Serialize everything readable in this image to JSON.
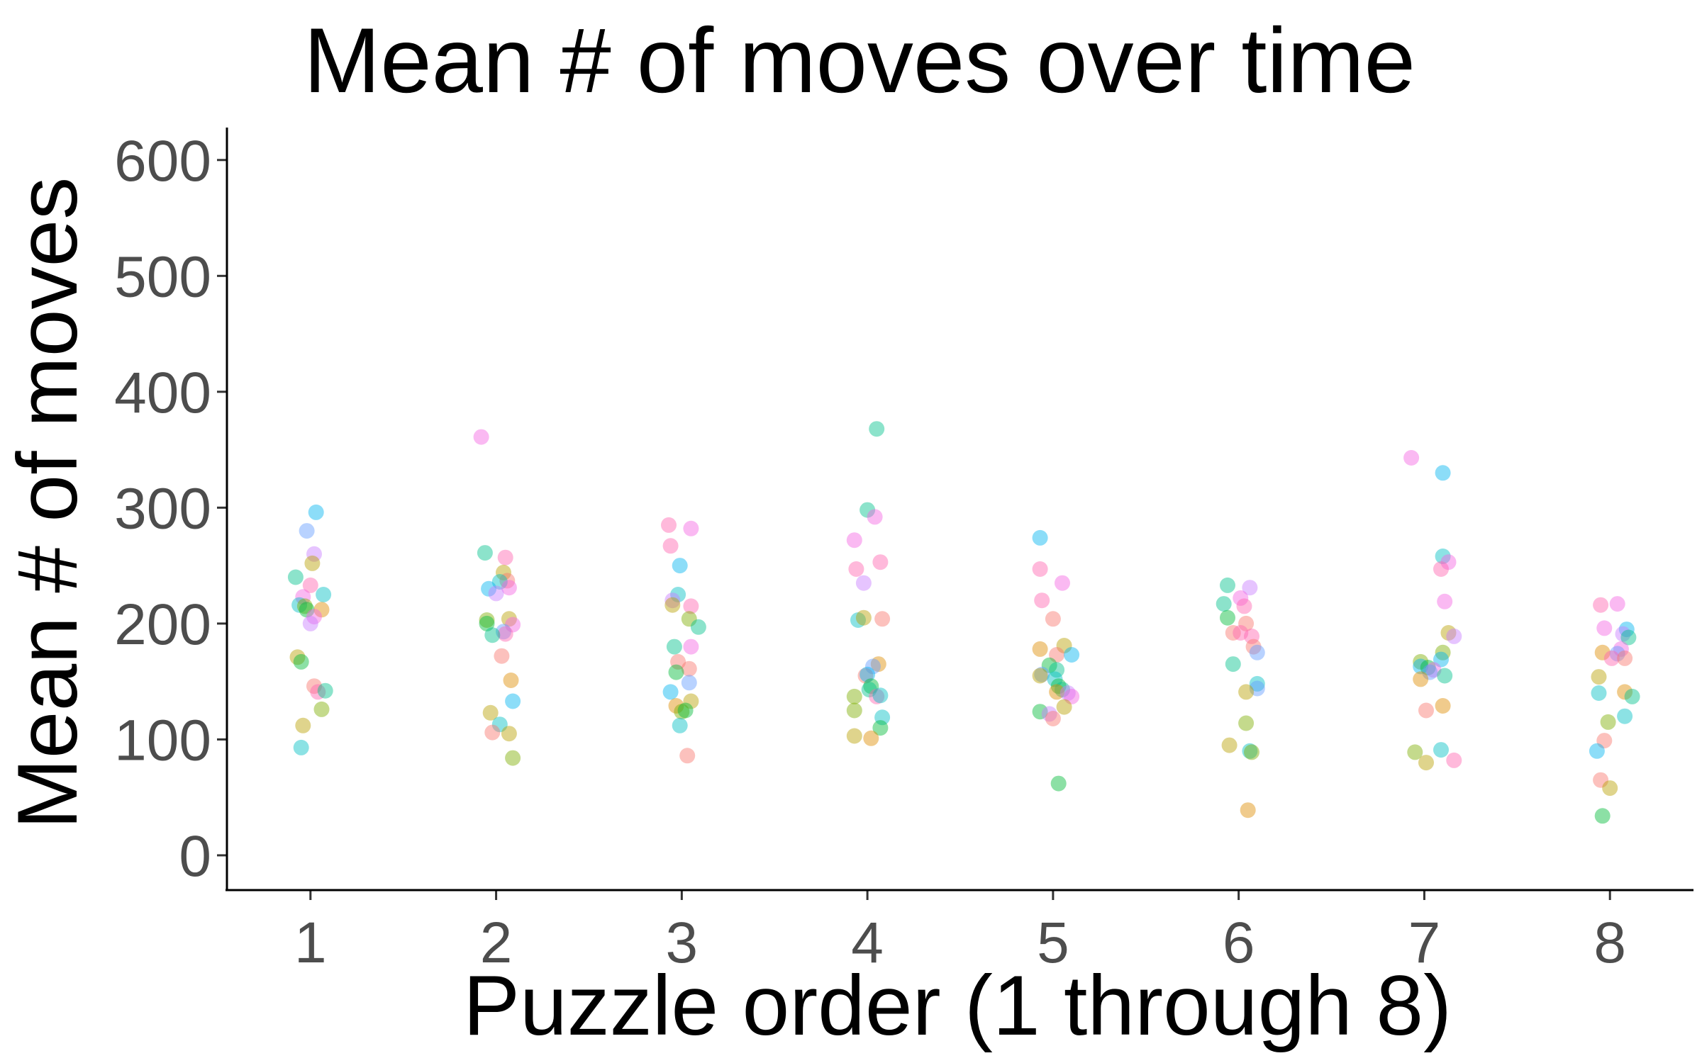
{
  "chart_data": {
    "type": "scatter",
    "title": "Mean # of moves over time",
    "xlabel": "Puzzle order (1 through 8)",
    "ylabel": "Mean # of moves",
    "x_ticks": [
      "1",
      "2",
      "3",
      "4",
      "5",
      "6",
      "7",
      "8"
    ],
    "y_ticks": [
      "0",
      "100",
      "200",
      "300",
      "400",
      "500",
      "600"
    ],
    "xlim": [
      0.55,
      8.45
    ],
    "ylim": [
      -30,
      628
    ],
    "grid": false,
    "legend": "none",
    "colors": [
      "#F8766D",
      "#DE8C00",
      "#B79F00",
      "#7CAE00",
      "#00BA38",
      "#00C08B",
      "#00BFC4",
      "#00B4F0",
      "#619CFF",
      "#C77CFF",
      "#F564E3",
      "#FF64B0"
    ],
    "points": [
      {
        "x": 0.92,
        "y": 240,
        "c": 5
      },
      {
        "x": 1.03,
        "y": 296,
        "c": 7
      },
      {
        "x": 0.98,
        "y": 280,
        "c": 8
      },
      {
        "x": 1.02,
        "y": 260,
        "c": 9
      },
      {
        "x": 1.01,
        "y": 252,
        "c": 2
      },
      {
        "x": 1.0,
        "y": 233,
        "c": 11
      },
      {
        "x": 1.07,
        "y": 225,
        "c": 6
      },
      {
        "x": 0.96,
        "y": 223,
        "c": 10
      },
      {
        "x": 0.94,
        "y": 216,
        "c": 6
      },
      {
        "x": 0.97,
        "y": 215,
        "c": 3
      },
      {
        "x": 0.98,
        "y": 212,
        "c": 4
      },
      {
        "x": 1.06,
        "y": 212,
        "c": 1
      },
      {
        "x": 1.02,
        "y": 206,
        "c": 10
      },
      {
        "x": 1.0,
        "y": 200,
        "c": 9
      },
      {
        "x": 0.93,
        "y": 171,
        "c": 2
      },
      {
        "x": 0.95,
        "y": 167,
        "c": 4
      },
      {
        "x": 1.02,
        "y": 146,
        "c": 0
      },
      {
        "x": 1.04,
        "y": 141,
        "c": 11
      },
      {
        "x": 1.08,
        "y": 142,
        "c": 5
      },
      {
        "x": 1.06,
        "y": 126,
        "c": 3
      },
      {
        "x": 0.96,
        "y": 112,
        "c": 2
      },
      {
        "x": 0.95,
        "y": 93,
        "c": 6
      },
      {
        "x": 1.92,
        "y": 361,
        "c": 10
      },
      {
        "x": 1.94,
        "y": 261,
        "c": 5
      },
      {
        "x": 2.05,
        "y": 257,
        "c": 11
      },
      {
        "x": 2.04,
        "y": 244,
        "c": 2
      },
      {
        "x": 2.06,
        "y": 237,
        "c": 0
      },
      {
        "x": 2.02,
        "y": 236,
        "c": 6
      },
      {
        "x": 2.07,
        "y": 231,
        "c": 10
      },
      {
        "x": 1.96,
        "y": 230,
        "c": 7
      },
      {
        "x": 2.0,
        "y": 226,
        "c": 9
      },
      {
        "x": 1.95,
        "y": 203,
        "c": 3
      },
      {
        "x": 2.07,
        "y": 204,
        "c": 2
      },
      {
        "x": 1.95,
        "y": 200,
        "c": 4
      },
      {
        "x": 2.09,
        "y": 199,
        "c": 10
      },
      {
        "x": 2.04,
        "y": 193,
        "c": 8
      },
      {
        "x": 2.05,
        "y": 191,
        "c": 11
      },
      {
        "x": 1.98,
        "y": 190,
        "c": 5
      },
      {
        "x": 2.03,
        "y": 172,
        "c": 0
      },
      {
        "x": 2.08,
        "y": 151,
        "c": 1
      },
      {
        "x": 2.09,
        "y": 133,
        "c": 7
      },
      {
        "x": 1.97,
        "y": 123,
        "c": 2
      },
      {
        "x": 2.02,
        "y": 113,
        "c": 6
      },
      {
        "x": 1.98,
        "y": 106,
        "c": 0
      },
      {
        "x": 2.07,
        "y": 105,
        "c": 2
      },
      {
        "x": 2.09,
        "y": 84,
        "c": 3
      },
      {
        "x": 2.93,
        "y": 285,
        "c": 11
      },
      {
        "x": 3.05,
        "y": 282,
        "c": 10
      },
      {
        "x": 2.94,
        "y": 267,
        "c": 11
      },
      {
        "x": 2.99,
        "y": 250,
        "c": 7
      },
      {
        "x": 2.98,
        "y": 225,
        "c": 6
      },
      {
        "x": 2.95,
        "y": 220,
        "c": 9
      },
      {
        "x": 2.95,
        "y": 216,
        "c": 2
      },
      {
        "x": 3.05,
        "y": 215,
        "c": 11
      },
      {
        "x": 3.04,
        "y": 204,
        "c": 3
      },
      {
        "x": 3.09,
        "y": 197,
        "c": 5
      },
      {
        "x": 2.96,
        "y": 180,
        "c": 5
      },
      {
        "x": 3.05,
        "y": 180,
        "c": 10
      },
      {
        "x": 2.98,
        "y": 167,
        "c": 0
      },
      {
        "x": 3.04,
        "y": 161,
        "c": 0
      },
      {
        "x": 2.97,
        "y": 158,
        "c": 4
      },
      {
        "x": 3.04,
        "y": 149,
        "c": 8
      },
      {
        "x": 2.94,
        "y": 141,
        "c": 7
      },
      {
        "x": 3.05,
        "y": 133,
        "c": 2
      },
      {
        "x": 2.97,
        "y": 129,
        "c": 1
      },
      {
        "x": 3.0,
        "y": 124,
        "c": 3
      },
      {
        "x": 3.02,
        "y": 125,
        "c": 4
      },
      {
        "x": 2.99,
        "y": 112,
        "c": 6
      },
      {
        "x": 3.03,
        "y": 86,
        "c": 0
      },
      {
        "x": 4.05,
        "y": 368,
        "c": 5
      },
      {
        "x": 4.0,
        "y": 298,
        "c": 5
      },
      {
        "x": 4.04,
        "y": 292,
        "c": 10
      },
      {
        "x": 3.93,
        "y": 272,
        "c": 10
      },
      {
        "x": 4.07,
        "y": 253,
        "c": 11
      },
      {
        "x": 3.94,
        "y": 247,
        "c": 11
      },
      {
        "x": 3.98,
        "y": 235,
        "c": 9
      },
      {
        "x": 3.95,
        "y": 203,
        "c": 6
      },
      {
        "x": 3.98,
        "y": 205,
        "c": 2
      },
      {
        "x": 4.08,
        "y": 204,
        "c": 0
      },
      {
        "x": 4.06,
        "y": 165,
        "c": 1
      },
      {
        "x": 4.03,
        "y": 163,
        "c": 8
      },
      {
        "x": 3.99,
        "y": 155,
        "c": 0
      },
      {
        "x": 4.0,
        "y": 156,
        "c": 7
      },
      {
        "x": 4.02,
        "y": 146,
        "c": 4
      },
      {
        "x": 4.01,
        "y": 143,
        "c": 5
      },
      {
        "x": 3.93,
        "y": 137,
        "c": 3
      },
      {
        "x": 4.05,
        "y": 137,
        "c": 11
      },
      {
        "x": 4.07,
        "y": 138,
        "c": 6
      },
      {
        "x": 3.93,
        "y": 125,
        "c": 3
      },
      {
        "x": 4.08,
        "y": 119,
        "c": 6
      },
      {
        "x": 4.07,
        "y": 110,
        "c": 4
      },
      {
        "x": 3.93,
        "y": 103,
        "c": 2
      },
      {
        "x": 4.02,
        "y": 101,
        "c": 1
      },
      {
        "x": 4.93,
        "y": 274,
        "c": 7
      },
      {
        "x": 4.93,
        "y": 247,
        "c": 11
      },
      {
        "x": 5.05,
        "y": 235,
        "c": 10
      },
      {
        "x": 4.94,
        "y": 220,
        "c": 11
      },
      {
        "x": 5.0,
        "y": 204,
        "c": 0
      },
      {
        "x": 5.06,
        "y": 181,
        "c": 2
      },
      {
        "x": 4.93,
        "y": 178,
        "c": 1
      },
      {
        "x": 5.02,
        "y": 173,
        "c": 0
      },
      {
        "x": 5.1,
        "y": 173,
        "c": 7
      },
      {
        "x": 4.98,
        "y": 164,
        "c": 4
      },
      {
        "x": 5.02,
        "y": 160,
        "c": 5
      },
      {
        "x": 4.94,
        "y": 156,
        "c": 8
      },
      {
        "x": 4.93,
        "y": 155,
        "c": 2
      },
      {
        "x": 5.01,
        "y": 152,
        "c": 6
      },
      {
        "x": 5.03,
        "y": 146,
        "c": 4
      },
      {
        "x": 5.05,
        "y": 143,
        "c": 5
      },
      {
        "x": 5.02,
        "y": 141,
        "c": 1
      },
      {
        "x": 5.08,
        "y": 140,
        "c": 9
      },
      {
        "x": 5.1,
        "y": 137,
        "c": 10
      },
      {
        "x": 5.06,
        "y": 128,
        "c": 2
      },
      {
        "x": 4.93,
        "y": 124,
        "c": 4
      },
      {
        "x": 4.98,
        "y": 122,
        "c": 9
      },
      {
        "x": 5.0,
        "y": 118,
        "c": 0
      },
      {
        "x": 5.03,
        "y": 62,
        "c": 4
      },
      {
        "x": 5.94,
        "y": 233,
        "c": 5
      },
      {
        "x": 6.06,
        "y": 231,
        "c": 9
      },
      {
        "x": 6.01,
        "y": 222,
        "c": 10
      },
      {
        "x": 5.92,
        "y": 217,
        "c": 5
      },
      {
        "x": 6.03,
        "y": 215,
        "c": 11
      },
      {
        "x": 5.94,
        "y": 205,
        "c": 4
      },
      {
        "x": 6.04,
        "y": 200,
        "c": 0
      },
      {
        "x": 5.97,
        "y": 192,
        "c": 0
      },
      {
        "x": 6.01,
        "y": 192,
        "c": 11
      },
      {
        "x": 6.07,
        "y": 189,
        "c": 11
      },
      {
        "x": 6.08,
        "y": 180,
        "c": 0
      },
      {
        "x": 6.1,
        "y": 175,
        "c": 8
      },
      {
        "x": 5.97,
        "y": 165,
        "c": 5
      },
      {
        "x": 6.1,
        "y": 148,
        "c": 6
      },
      {
        "x": 6.1,
        "y": 144,
        "c": 8
      },
      {
        "x": 6.04,
        "y": 141,
        "c": 2
      },
      {
        "x": 6.04,
        "y": 114,
        "c": 3
      },
      {
        "x": 5.95,
        "y": 95,
        "c": 2
      },
      {
        "x": 6.06,
        "y": 90,
        "c": 6
      },
      {
        "x": 6.07,
        "y": 89,
        "c": 3
      },
      {
        "x": 6.05,
        "y": 39,
        "c": 1
      },
      {
        "x": 6.93,
        "y": 343,
        "c": 10
      },
      {
        "x": 7.1,
        "y": 330,
        "c": 7
      },
      {
        "x": 7.1,
        "y": 258,
        "c": 6
      },
      {
        "x": 7.13,
        "y": 253,
        "c": 10
      },
      {
        "x": 7.09,
        "y": 247,
        "c": 11
      },
      {
        "x": 7.11,
        "y": 219,
        "c": 10
      },
      {
        "x": 7.13,
        "y": 192,
        "c": 2
      },
      {
        "x": 7.16,
        "y": 189,
        "c": 9
      },
      {
        "x": 7.1,
        "y": 175,
        "c": 3
      },
      {
        "x": 6.98,
        "y": 167,
        "c": 3
      },
      {
        "x": 7.09,
        "y": 169,
        "c": 7
      },
      {
        "x": 6.98,
        "y": 163,
        "c": 7
      },
      {
        "x": 7.02,
        "y": 162,
        "c": 4
      },
      {
        "x": 7.05,
        "y": 160,
        "c": 10
      },
      {
        "x": 7.03,
        "y": 158,
        "c": 8
      },
      {
        "x": 7.11,
        "y": 155,
        "c": 5
      },
      {
        "x": 6.98,
        "y": 152,
        "c": 1
      },
      {
        "x": 7.1,
        "y": 129,
        "c": 1
      },
      {
        "x": 7.01,
        "y": 125,
        "c": 0
      },
      {
        "x": 7.09,
        "y": 91,
        "c": 6
      },
      {
        "x": 6.95,
        "y": 89,
        "c": 3
      },
      {
        "x": 7.16,
        "y": 82,
        "c": 11
      },
      {
        "x": 7.01,
        "y": 80,
        "c": 2
      },
      {
        "x": 7.95,
        "y": 216,
        "c": 11
      },
      {
        "x": 8.04,
        "y": 217,
        "c": 10
      },
      {
        "x": 7.97,
        "y": 196,
        "c": 10
      },
      {
        "x": 8.09,
        "y": 195,
        "c": 7
      },
      {
        "x": 8.07,
        "y": 191,
        "c": 9
      },
      {
        "x": 8.1,
        "y": 188,
        "c": 5
      },
      {
        "x": 8.06,
        "y": 178,
        "c": 10
      },
      {
        "x": 7.96,
        "y": 175,
        "c": 1
      },
      {
        "x": 8.04,
        "y": 174,
        "c": 8
      },
      {
        "x": 8.01,
        "y": 170,
        "c": 11
      },
      {
        "x": 8.08,
        "y": 170,
        "c": 0
      },
      {
        "x": 7.94,
        "y": 154,
        "c": 2
      },
      {
        "x": 8.08,
        "y": 141,
        "c": 1
      },
      {
        "x": 8.12,
        "y": 137,
        "c": 5
      },
      {
        "x": 7.94,
        "y": 140,
        "c": 6
      },
      {
        "x": 8.08,
        "y": 120,
        "c": 6
      },
      {
        "x": 7.99,
        "y": 115,
        "c": 3
      },
      {
        "x": 7.97,
        "y": 99,
        "c": 0
      },
      {
        "x": 7.93,
        "y": 90,
        "c": 7
      },
      {
        "x": 7.95,
        "y": 65,
        "c": 0
      },
      {
        "x": 8.0,
        "y": 58,
        "c": 2
      },
      {
        "x": 7.96,
        "y": 34,
        "c": 4
      }
    ]
  }
}
